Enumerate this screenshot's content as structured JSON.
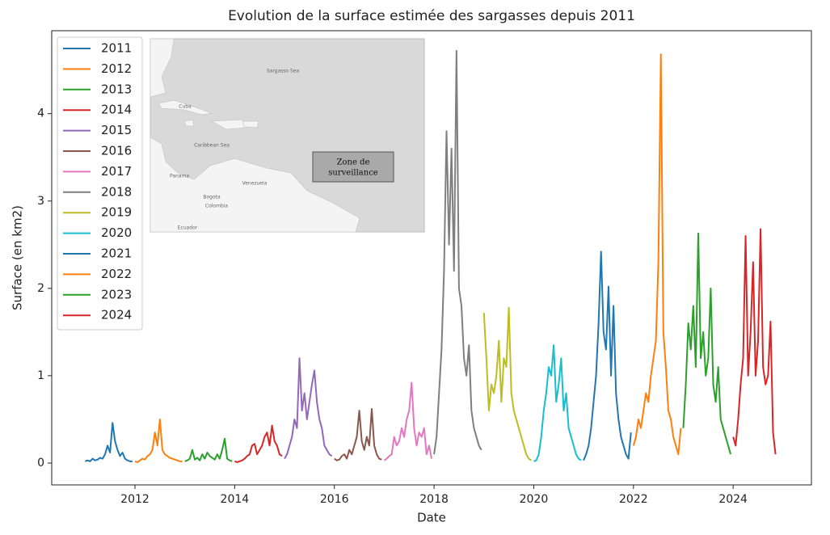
{
  "chart_data": {
    "type": "line",
    "title": "Evolution de la surface estimée des sargasses depuis 2011",
    "xlabel": "Date",
    "ylabel": "Surface (en km2)",
    "xlim": [
      2010.33,
      2025.57
    ],
    "ylim": [
      -0.25,
      4.95
    ],
    "xticks": [
      2012,
      2014,
      2016,
      2018,
      2020,
      2022,
      2024
    ],
    "yticks": [
      0,
      1,
      2,
      3,
      4
    ],
    "legend": "upper left",
    "series": [
      {
        "name": "2011",
        "color": "#1f77b4",
        "x": [
          2011.0,
          2011.05,
          2011.1,
          2011.15,
          2011.2,
          2011.25,
          2011.3,
          2011.35,
          2011.4,
          2011.45,
          2011.5,
          2011.55,
          2011.6,
          2011.65,
          2011.7,
          2011.75,
          2011.8,
          2011.85,
          2011.9,
          2011.95
        ],
        "values": [
          0.02,
          0.03,
          0.02,
          0.05,
          0.03,
          0.04,
          0.06,
          0.05,
          0.1,
          0.2,
          0.12,
          0.46,
          0.25,
          0.15,
          0.08,
          0.12,
          0.05,
          0.03,
          0.02,
          0.02
        ]
      },
      {
        "name": "2012",
        "color": "#ff7f0e",
        "x": [
          2012.0,
          2012.05,
          2012.1,
          2012.15,
          2012.2,
          2012.25,
          2012.3,
          2012.35,
          2012.4,
          2012.45,
          2012.5,
          2012.55,
          2012.6,
          2012.65,
          2012.7,
          2012.75,
          2012.8,
          2012.85,
          2012.9,
          2012.95
        ],
        "values": [
          0.02,
          0.01,
          0.03,
          0.05,
          0.04,
          0.08,
          0.1,
          0.15,
          0.35,
          0.2,
          0.5,
          0.15,
          0.1,
          0.08,
          0.06,
          0.05,
          0.04,
          0.03,
          0.02,
          0.02
        ]
      },
      {
        "name": "2013",
        "color": "#2ca02c",
        "x": [
          2013.0,
          2013.05,
          2013.1,
          2013.15,
          2013.2,
          2013.25,
          2013.3,
          2013.35,
          2013.4,
          2013.45,
          2013.5,
          2013.55,
          2013.6,
          2013.65,
          2013.7,
          2013.75,
          2013.8,
          2013.85,
          2013.9,
          2013.95
        ],
        "values": [
          0.02,
          0.03,
          0.05,
          0.15,
          0.04,
          0.06,
          0.03,
          0.1,
          0.05,
          0.12,
          0.08,
          0.06,
          0.04,
          0.1,
          0.05,
          0.15,
          0.28,
          0.05,
          0.03,
          0.02
        ]
      },
      {
        "name": "2014",
        "color": "#d62728",
        "x": [
          2014.0,
          2014.05,
          2014.1,
          2014.15,
          2014.2,
          2014.25,
          2014.3,
          2014.35,
          2014.4,
          2014.45,
          2014.5,
          2014.55,
          2014.6,
          2014.65,
          2014.7,
          2014.75,
          2014.8,
          2014.85,
          2014.9,
          2014.95
        ],
        "values": [
          0.02,
          0.01,
          0.02,
          0.03,
          0.05,
          0.08,
          0.1,
          0.2,
          0.22,
          0.1,
          0.15,
          0.2,
          0.3,
          0.35,
          0.2,
          0.43,
          0.25,
          0.2,
          0.1,
          0.08
        ]
      },
      {
        "name": "2015",
        "color": "#9467bd",
        "x": [
          2015.0,
          2015.05,
          2015.1,
          2015.15,
          2015.2,
          2015.25,
          2015.3,
          2015.35,
          2015.4,
          2015.45,
          2015.5,
          2015.55,
          2015.6,
          2015.65,
          2015.7,
          2015.75,
          2015.8,
          2015.85,
          2015.9,
          2015.95
        ],
        "values": [
          0.05,
          0.1,
          0.2,
          0.3,
          0.5,
          0.4,
          1.2,
          0.6,
          0.8,
          0.5,
          0.7,
          0.9,
          1.06,
          0.7,
          0.5,
          0.4,
          0.2,
          0.15,
          0.1,
          0.08
        ]
      },
      {
        "name": "2016",
        "color": "#8c564b",
        "x": [
          2016.0,
          2016.05,
          2016.1,
          2016.15,
          2016.2,
          2016.25,
          2016.3,
          2016.35,
          2016.4,
          2016.45,
          2016.5,
          2016.55,
          2016.6,
          2016.65,
          2016.7,
          2016.75,
          2016.8,
          2016.85,
          2016.9,
          2016.95
        ],
        "values": [
          0.05,
          0.03,
          0.04,
          0.08,
          0.1,
          0.05,
          0.15,
          0.1,
          0.2,
          0.3,
          0.6,
          0.25,
          0.15,
          0.3,
          0.2,
          0.62,
          0.2,
          0.1,
          0.05,
          0.04
        ]
      },
      {
        "name": "2017",
        "color": "#e377c2",
        "x": [
          2017.0,
          2017.05,
          2017.1,
          2017.15,
          2017.2,
          2017.25,
          2017.3,
          2017.35,
          2017.4,
          2017.45,
          2017.5,
          2017.55,
          2017.6,
          2017.65,
          2017.7,
          2017.75,
          2017.8,
          2017.85,
          2017.9,
          2017.95
        ],
        "values": [
          0.03,
          0.05,
          0.08,
          0.1,
          0.3,
          0.2,
          0.25,
          0.4,
          0.3,
          0.5,
          0.6,
          0.92,
          0.4,
          0.2,
          0.35,
          0.3,
          0.4,
          0.1,
          0.2,
          0.05
        ]
      },
      {
        "name": "2018",
        "color": "#7f7f7f",
        "x": [
          2018.0,
          2018.05,
          2018.1,
          2018.15,
          2018.2,
          2018.25,
          2018.3,
          2018.35,
          2018.4,
          2018.45,
          2018.5,
          2018.55,
          2018.6,
          2018.65,
          2018.7,
          2018.75,
          2018.8,
          2018.85,
          2018.9,
          2018.95
        ],
        "values": [
          0.1,
          0.3,
          0.8,
          1.3,
          2.2,
          3.8,
          2.5,
          3.6,
          2.2,
          4.72,
          2.0,
          1.8,
          1.2,
          1.0,
          1.35,
          0.6,
          0.4,
          0.3,
          0.2,
          0.15
        ]
      },
      {
        "name": "2019",
        "color": "#bcbd22",
        "x": [
          2019.0,
          2019.05,
          2019.1,
          2019.15,
          2019.2,
          2019.25,
          2019.3,
          2019.35,
          2019.4,
          2019.45,
          2019.5,
          2019.55,
          2019.6,
          2019.65,
          2019.7,
          2019.75,
          2019.8,
          2019.85,
          2019.9,
          2019.95
        ],
        "values": [
          1.72,
          1.2,
          0.6,
          0.9,
          0.8,
          1.0,
          1.4,
          0.7,
          1.2,
          1.1,
          1.78,
          0.8,
          0.6,
          0.5,
          0.4,
          0.3,
          0.2,
          0.1,
          0.05,
          0.03
        ]
      },
      {
        "name": "2020",
        "color": "#17becf",
        "x": [
          2020.0,
          2020.05,
          2020.1,
          2020.15,
          2020.2,
          2020.25,
          2020.3,
          2020.35,
          2020.4,
          2020.45,
          2020.5,
          2020.55,
          2020.6,
          2020.65,
          2020.7,
          2020.75,
          2020.8,
          2020.85,
          2020.9,
          2020.95
        ],
        "values": [
          0.02,
          0.03,
          0.1,
          0.3,
          0.6,
          0.8,
          1.1,
          1.0,
          1.35,
          0.7,
          0.9,
          1.2,
          0.6,
          0.8,
          0.4,
          0.3,
          0.2,
          0.1,
          0.05,
          0.03
        ]
      },
      {
        "name": "2021",
        "color": "#1f77b4",
        "x": [
          2021.0,
          2021.05,
          2021.1,
          2021.15,
          2021.2,
          2021.25,
          2021.3,
          2021.35,
          2021.4,
          2021.45,
          2021.5,
          2021.55,
          2021.6,
          2021.65,
          2021.7,
          2021.75,
          2021.8,
          2021.85,
          2021.9,
          2021.95
        ],
        "values": [
          0.03,
          0.1,
          0.2,
          0.4,
          0.7,
          1.0,
          1.6,
          2.42,
          1.5,
          1.3,
          2.02,
          1.0,
          1.8,
          0.8,
          0.5,
          0.3,
          0.2,
          0.1,
          0.05,
          0.35
        ]
      },
      {
        "name": "2022",
        "color": "#ff7f0e",
        "x": [
          2022.0,
          2022.05,
          2022.1,
          2022.15,
          2022.2,
          2022.25,
          2022.3,
          2022.35,
          2022.4,
          2022.45,
          2022.5,
          2022.55,
          2022.6,
          2022.65,
          2022.7,
          2022.75,
          2022.8,
          2022.85,
          2022.9,
          2022.95
        ],
        "values": [
          0.2,
          0.3,
          0.5,
          0.4,
          0.6,
          0.8,
          0.7,
          1.0,
          1.2,
          1.4,
          2.3,
          4.68,
          1.5,
          1.1,
          0.6,
          0.5,
          0.3,
          0.2,
          0.1,
          0.4
        ]
      },
      {
        "name": "2023",
        "color": "#2ca02c",
        "x": [
          2023.0,
          2023.05,
          2023.1,
          2023.15,
          2023.2,
          2023.25,
          2023.3,
          2023.35,
          2023.4,
          2023.45,
          2023.5,
          2023.55,
          2023.6,
          2023.65,
          2023.7,
          2023.75,
          2023.8,
          2023.85,
          2023.9,
          2023.95
        ],
        "values": [
          0.4,
          0.9,
          1.6,
          1.3,
          1.8,
          1.1,
          2.63,
          1.2,
          1.5,
          1.0,
          1.2,
          2.0,
          0.9,
          0.7,
          1.1,
          0.5,
          0.4,
          0.3,
          0.2,
          0.1
        ]
      },
      {
        "name": "2024",
        "color": "#d62728",
        "x": [
          2024.0,
          2024.05,
          2024.1,
          2024.15,
          2024.2,
          2024.25,
          2024.3,
          2024.35,
          2024.4,
          2024.45,
          2024.5,
          2024.55,
          2024.6,
          2024.65,
          2024.7,
          2024.75,
          2024.8,
          2024.85
        ],
        "values": [
          0.3,
          0.2,
          0.5,
          0.9,
          1.2,
          2.6,
          1.0,
          1.5,
          2.3,
          1.0,
          1.4,
          2.68,
          1.1,
          0.9,
          1.0,
          1.62,
          0.35,
          0.1
        ]
      }
    ],
    "inset": {
      "labels": [
        "Sargasso Sea",
        "Cuba",
        "Caribbean Sea",
        "Panama",
        "Venezuela",
        "Bogota",
        "Colombia",
        "Ecuador"
      ],
      "zone_label": [
        "Zone de",
        "surveillance"
      ]
    }
  }
}
